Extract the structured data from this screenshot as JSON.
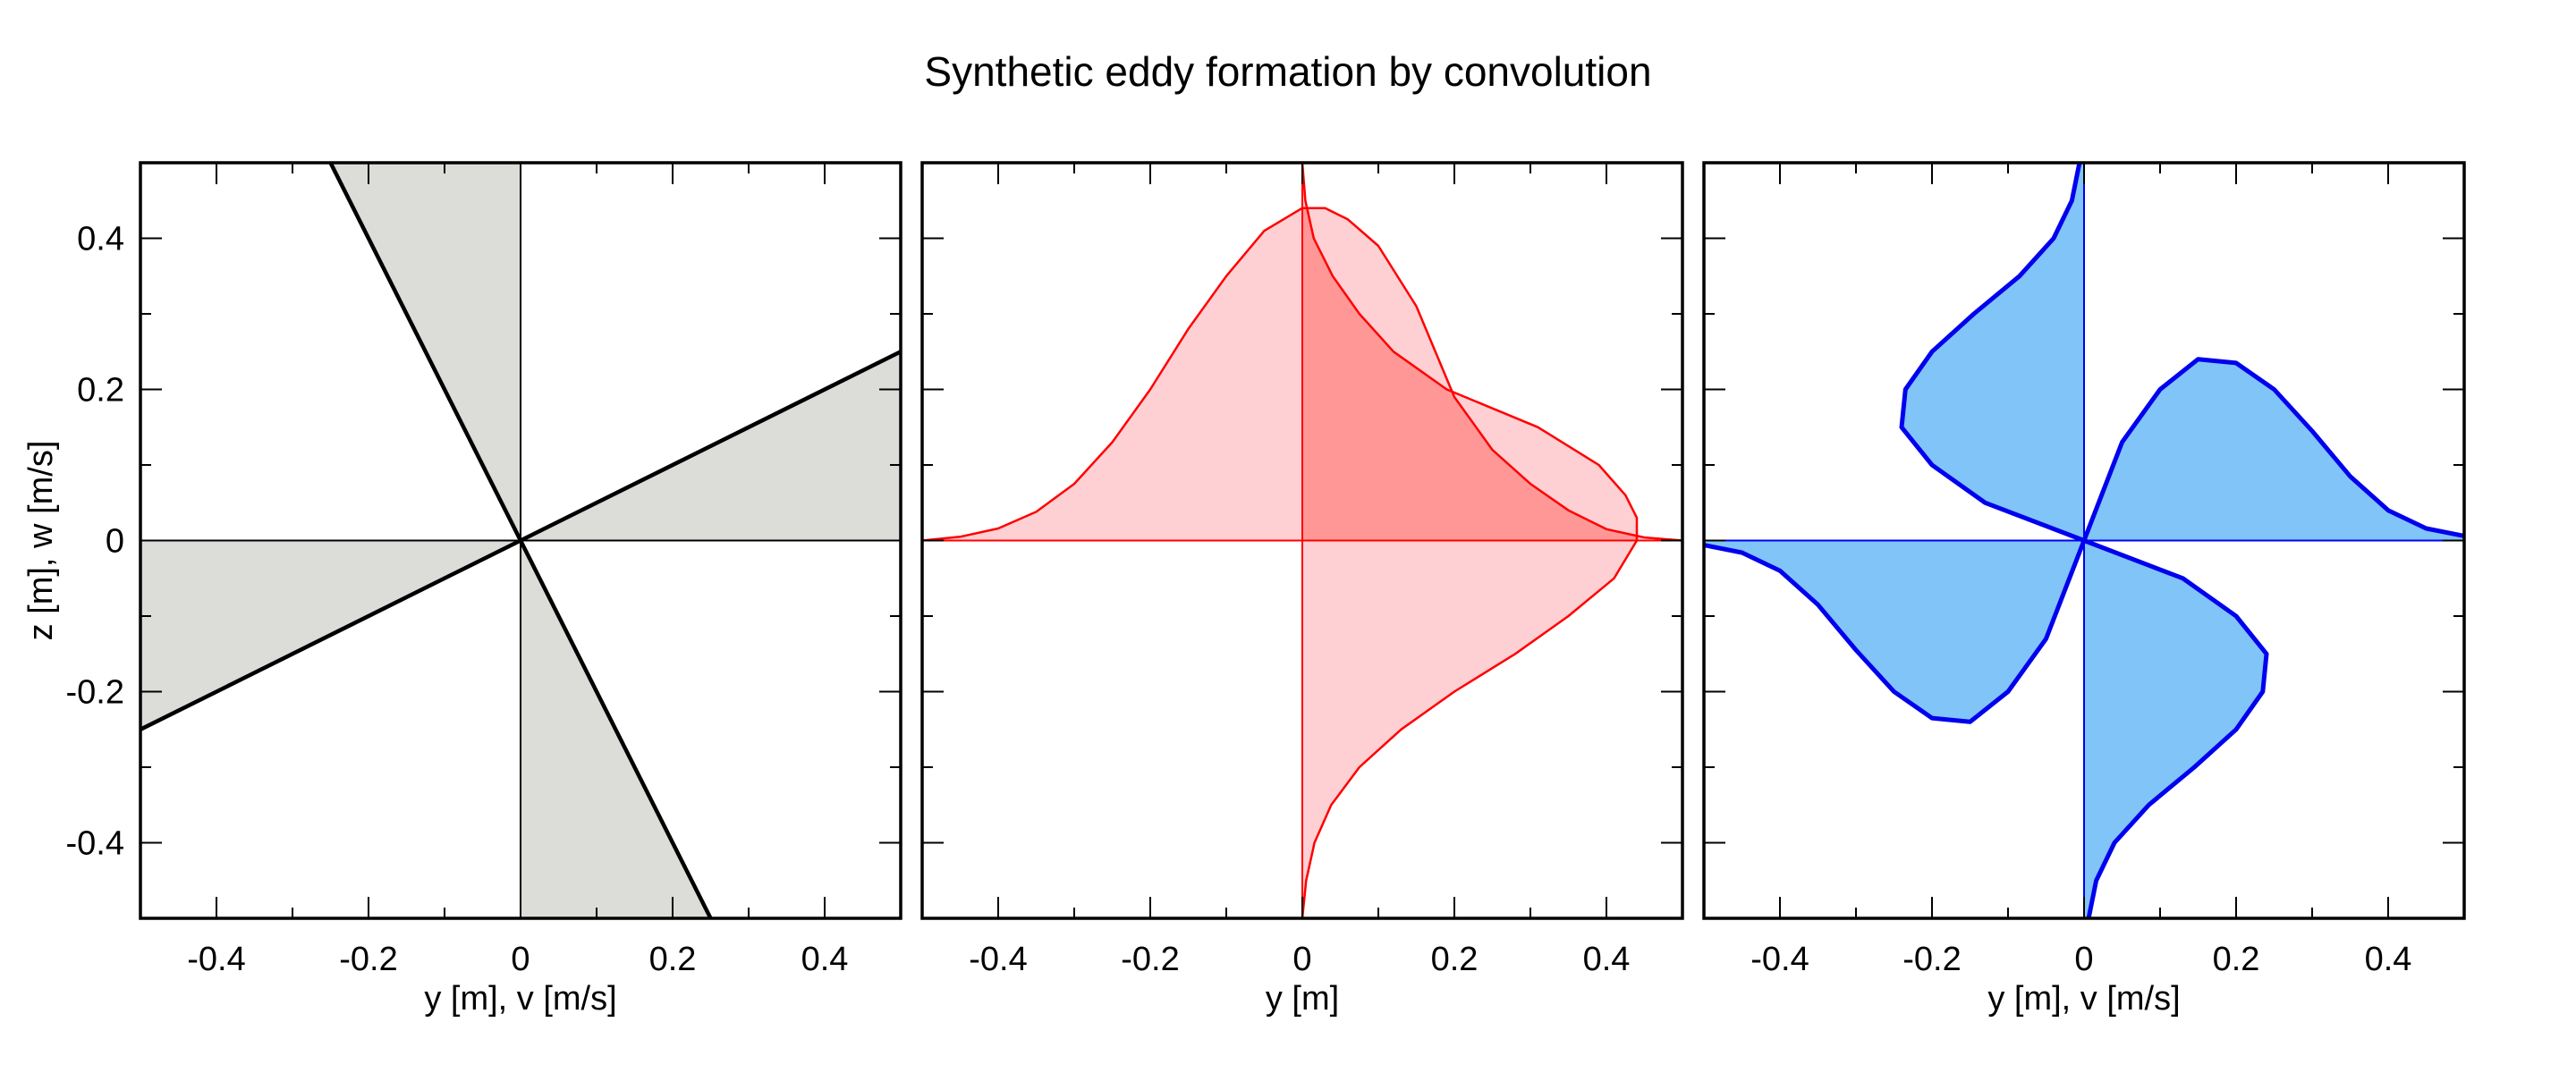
{
  "title": "Synthetic eddy formation by convolution",
  "chart_data": [
    {
      "type": "area",
      "panel": "left",
      "xlabel": "y [m], v [m/s]",
      "ylabel": "z [m], w [m/s]",
      "xlim": [
        -0.5,
        0.5
      ],
      "ylim": [
        -0.5,
        0.5
      ],
      "xticks": [
        "-0.4",
        "-0.2",
        "0",
        "0.2",
        "0.4"
      ],
      "yticks": [
        "-0.4",
        "-0.2",
        "0",
        "0.2",
        "0.4"
      ],
      "colors": {
        "fill": "#dcdcd8",
        "line": "#000000"
      },
      "series": [
        {
          "name": "",
          "x": [
            -0.5,
            0,
            0.5
          ],
          "y": [
            -0.25,
            0,
            0.25
          ]
        },
        {
          "name": "",
          "x": [
            -0.25,
            0,
            0.25
          ],
          "y": [
            0.5,
            0,
            -0.5
          ]
        }
      ]
    },
    {
      "type": "area",
      "panel": "middle",
      "xlabel": "y [m]",
      "ylabel": "",
      "xlim": [
        -0.5,
        0.5
      ],
      "ylim": [
        -0.5,
        0.5
      ],
      "xticks": [
        "-0.4",
        "-0.2",
        "0",
        "0.2",
        "0.4"
      ],
      "colors": {
        "fill": "#ffd0d3",
        "overlap": "#ff9797",
        "line": "#ff0000"
      },
      "series": [
        {
          "name": "",
          "x": [
            -0.5,
            -0.45,
            -0.4,
            -0.35,
            -0.3,
            -0.25,
            -0.2,
            -0.15,
            -0.1,
            -0.05,
            0,
            0.03,
            0.06,
            0.1,
            0.15,
            0.2,
            0.25,
            0.3,
            0.35,
            0.4,
            0.45,
            0.5
          ],
          "y": [
            0.0,
            0.005,
            0.016,
            0.038,
            0.075,
            0.13,
            0.2,
            0.28,
            0.35,
            0.41,
            0.44,
            0.44,
            0.425,
            0.39,
            0.31,
            0.19,
            0.12,
            0.075,
            0.04,
            0.015,
            0.004,
            0.0
          ]
        },
        {
          "name": "",
          "x": [
            0.0,
            0.004,
            0.015,
            0.04,
            0.075,
            0.12,
            0.19,
            0.31,
            0.39,
            0.425,
            0.44,
            0.44,
            0.41,
            0.35,
            0.28,
            0.2,
            0.13,
            0.075,
            0.038,
            0.016,
            0.005,
            0.0
          ],
          "y": [
            0.5,
            0.45,
            0.4,
            0.35,
            0.3,
            0.25,
            0.2,
            0.15,
            0.1,
            0.06,
            0.03,
            0.0,
            -0.05,
            -0.1,
            -0.15,
            -0.2,
            -0.25,
            -0.3,
            -0.35,
            -0.4,
            -0.45,
            -0.5
          ]
        }
      ]
    },
    {
      "type": "area",
      "panel": "right",
      "xlabel": "y [m], v [m/s]",
      "ylabel": "",
      "xlim": [
        -0.5,
        0.5
      ],
      "ylim": [
        -0.5,
        0.5
      ],
      "xticks": [
        "-0.4",
        "-0.2",
        "0",
        "0.2",
        "0.4"
      ],
      "colors": {
        "fill": "#80c4f8",
        "line": "#0000ee"
      },
      "series": [
        {
          "name": "",
          "x": [
            -0.5,
            -0.45,
            -0.4,
            -0.35,
            -0.3,
            -0.25,
            -0.2,
            -0.15,
            -0.1,
            -0.05,
            0,
            0.05,
            0.1,
            0.15,
            0.2,
            0.25,
            0.3,
            0.35,
            0.4,
            0.45,
            0.5
          ],
          "y": [
            -0.006,
            -0.016,
            -0.04,
            -0.085,
            -0.145,
            -0.2,
            -0.235,
            -0.24,
            -0.2,
            -0.13,
            0,
            0.13,
            0.2,
            0.24,
            0.235,
            0.2,
            0.145,
            0.085,
            0.04,
            0.016,
            0.006
          ]
        },
        {
          "name": "",
          "x": [
            0.006,
            0.016,
            0.04,
            0.085,
            0.145,
            0.2,
            0.235,
            0.24,
            0.2,
            0.13,
            0,
            -0.13,
            -0.2,
            -0.24,
            -0.235,
            -0.2,
            -0.145,
            -0.085,
            -0.04,
            -0.016,
            -0.006
          ],
          "y": [
            -0.5,
            -0.45,
            -0.4,
            -0.35,
            -0.3,
            -0.25,
            -0.2,
            -0.15,
            -0.1,
            -0.05,
            0,
            0.05,
            0.1,
            0.15,
            0.2,
            0.25,
            0.3,
            0.35,
            0.4,
            0.45,
            0.5
          ]
        }
      ]
    }
  ]
}
